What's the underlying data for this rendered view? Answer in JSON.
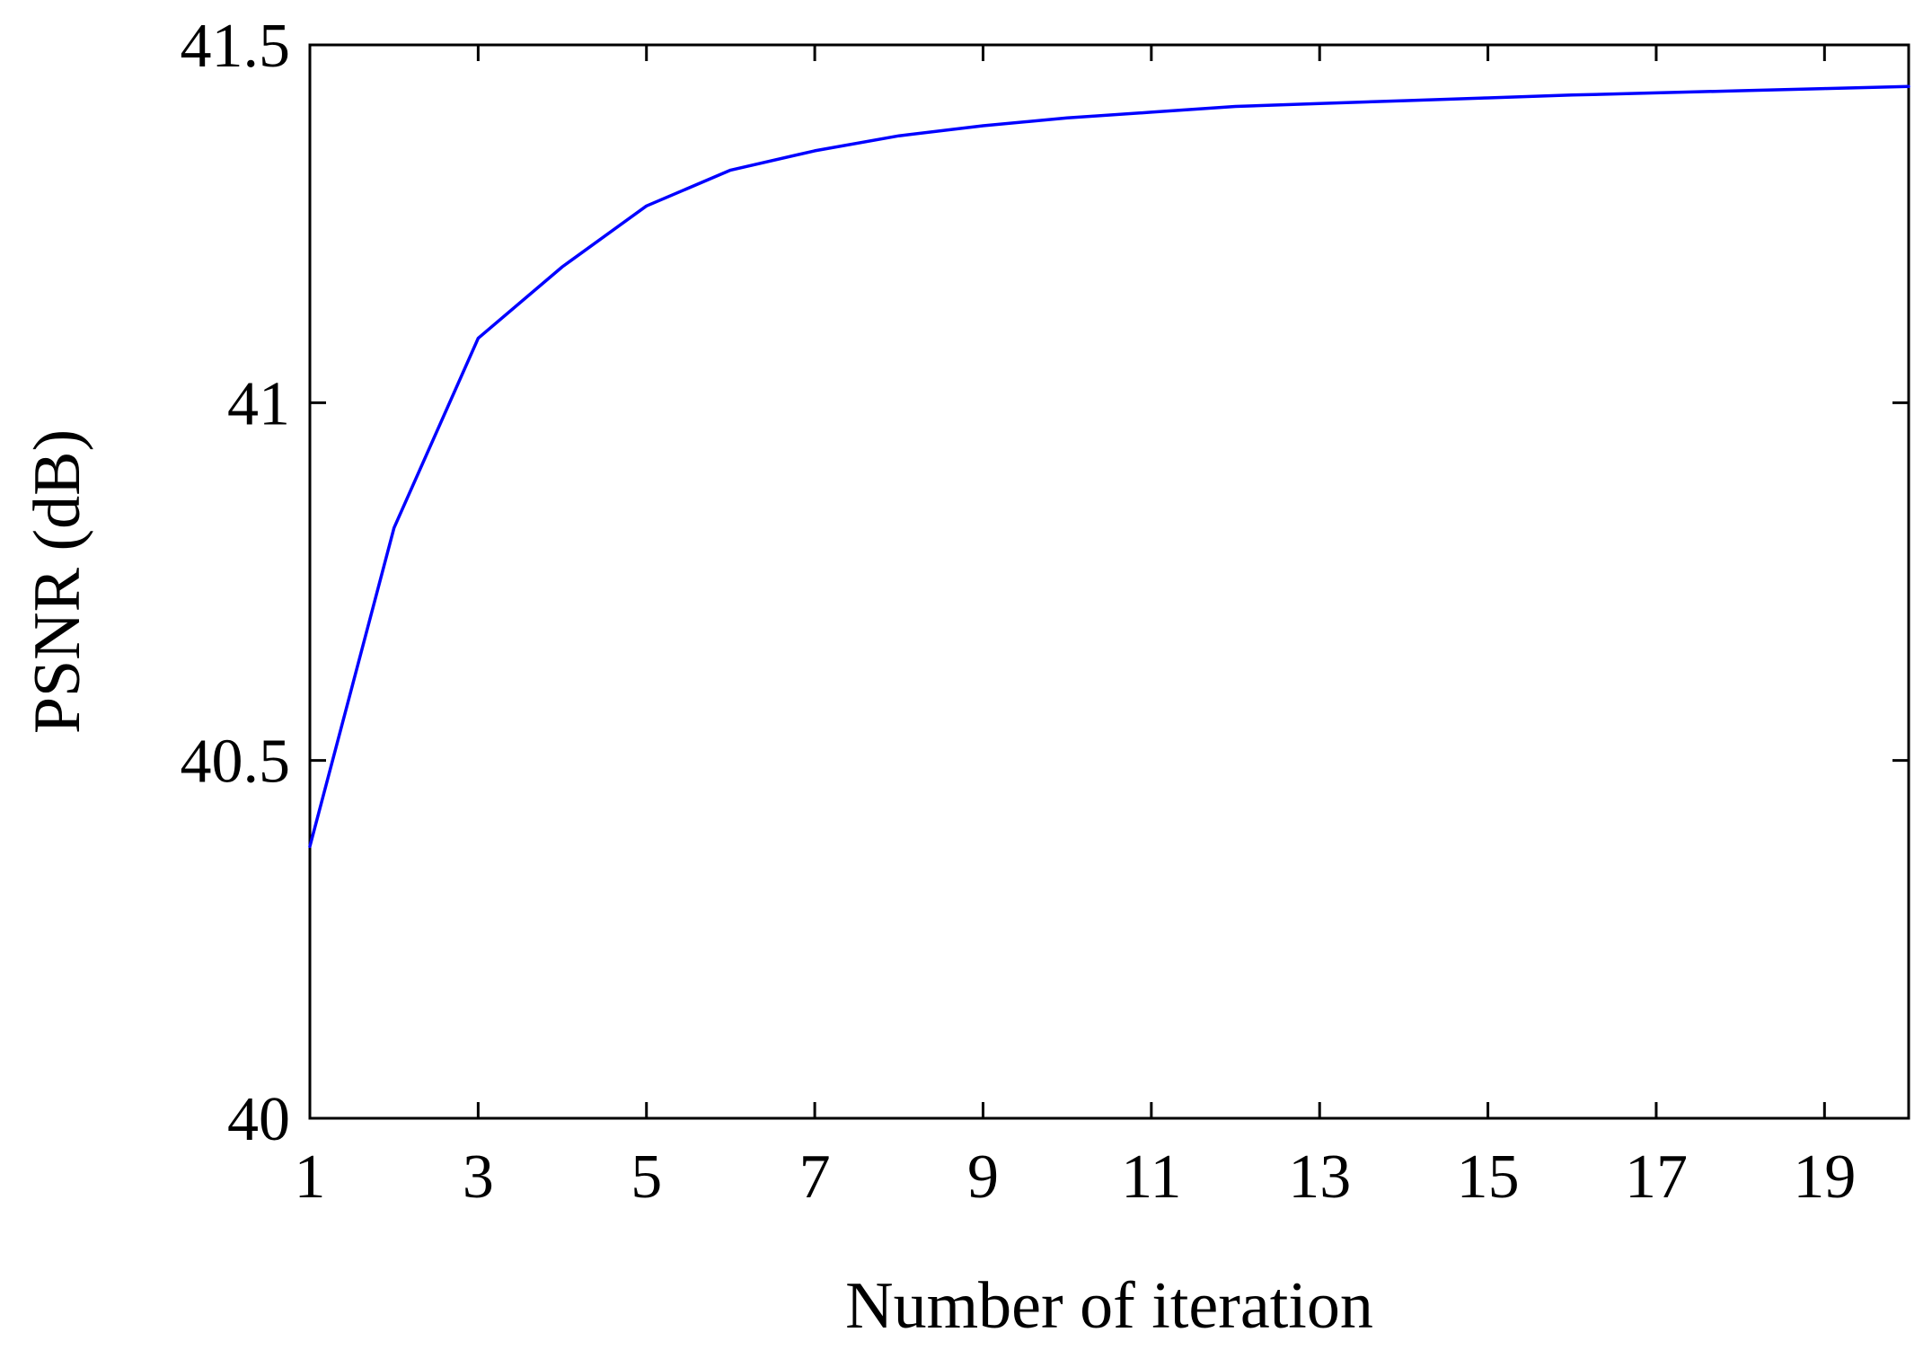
{
  "chart_data": {
    "type": "line",
    "title": "",
    "xlabel": "Number of iteration",
    "ylabel": "PSNR (dB)",
    "xlim": [
      1,
      20
    ],
    "ylim": [
      40,
      41.5
    ],
    "x_ticks": [
      1,
      3,
      5,
      7,
      9,
      11,
      13,
      15,
      17,
      19
    ],
    "x_tick_labels": [
      "1",
      "3",
      "5",
      "7",
      "9",
      "11",
      "13",
      "15",
      "17",
      "19"
    ],
    "y_ticks": [
      40,
      40.5,
      41,
      41.5
    ],
    "y_tick_labels": [
      "40",
      "40.5",
      "41",
      "41.5"
    ],
    "grid": false,
    "legend": "none",
    "series": [
      {
        "color": "#0000ff",
        "x": [
          1,
          2,
          3,
          4,
          5,
          6,
          7,
          8,
          9,
          10,
          11,
          12,
          13,
          14,
          15,
          16,
          17,
          18,
          19,
          20
        ],
        "y": [
          40.38,
          40.825,
          41.09,
          41.19,
          41.275,
          41.325,
          41.352,
          41.373,
          41.387,
          41.398,
          41.406,
          41.414,
          41.418,
          41.422,
          41.426,
          41.43,
          41.433,
          41.436,
          41.439,
          41.442
        ]
      }
    ]
  }
}
